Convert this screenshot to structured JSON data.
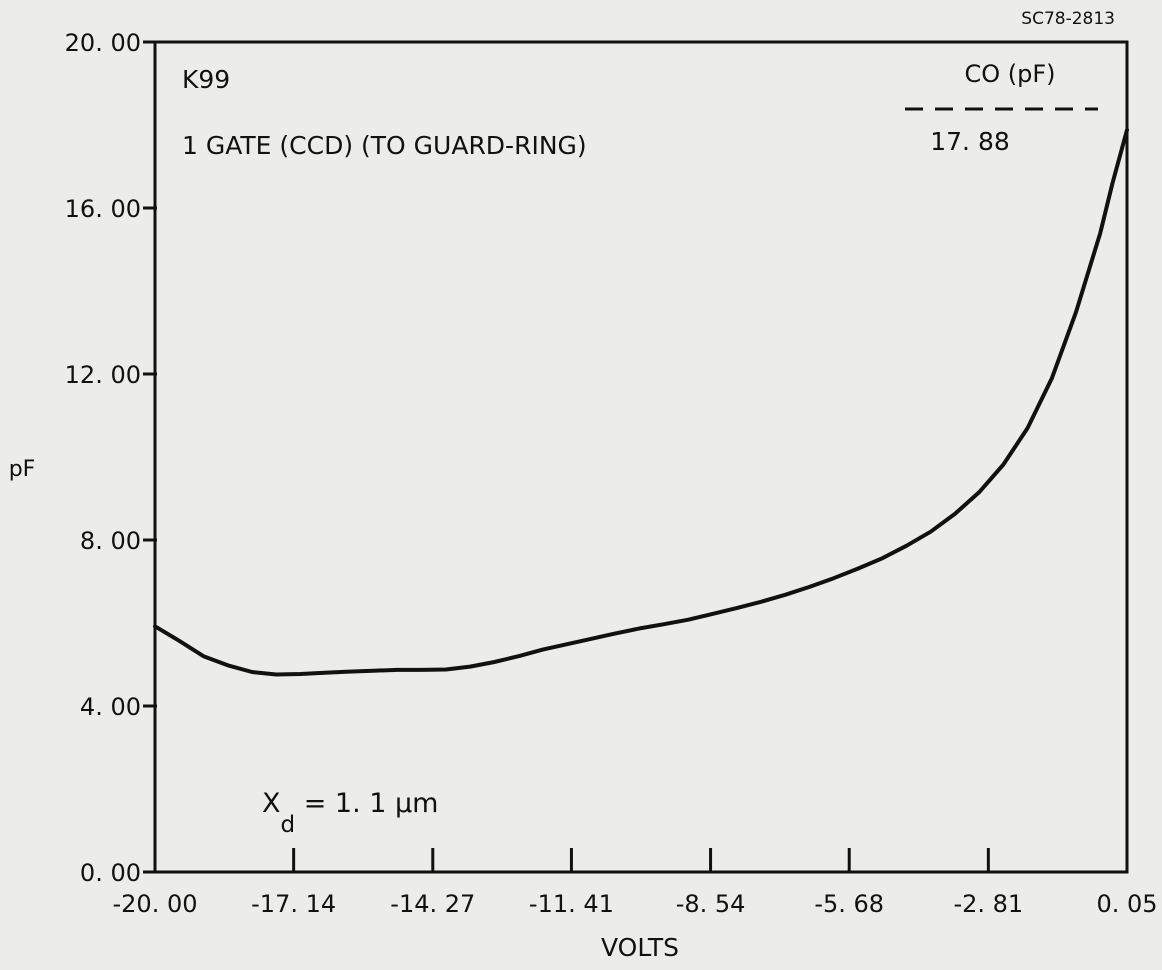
{
  "figure_id": "SC78-2813",
  "chart_data": {
    "type": "line",
    "xlabel": "VOLTS",
    "ylabel": "pF",
    "xlim": [
      -20.0,
      0.05
    ],
    "ylim": [
      0.0,
      20.0
    ],
    "x_ticks": [
      "-20. 00",
      "-17. 14",
      "-14. 27",
      "-11. 41",
      "-8. 54",
      "-5. 68",
      "-2. 81",
      "0. 05"
    ],
    "x_tick_values": [
      -20.0,
      -17.14,
      -14.27,
      -11.41,
      -8.54,
      -5.68,
      -2.81,
      0.05
    ],
    "y_ticks": [
      "0. 00",
      "4. 00",
      "8. 00",
      "12. 00",
      "16. 00",
      "20. 00"
    ],
    "y_tick_values": [
      0,
      4,
      8,
      12,
      16,
      20
    ],
    "annotations": {
      "sample": "K99",
      "description": "1 GATE (CCD) (TO GUARD-RING)",
      "co_header": "CO (pF)",
      "co_value": "17. 88",
      "xd_main": "X",
      "xd_sub": "d",
      "xd_rest": " = 1. 1 µm"
    },
    "grid": false,
    "series": [
      {
        "x": [
          -20.0,
          -19.5,
          -19.0,
          -18.5,
          -18.0,
          -17.5,
          -17.0,
          -16.5,
          -16.0,
          -15.5,
          -15.0,
          -14.5,
          -14.0,
          -13.5,
          -13.0,
          -12.5,
          -12.0,
          -11.5,
          -11.0,
          -10.5,
          -10.0,
          -9.5,
          -9.0,
          -8.5,
          -8.0,
          -7.5,
          -7.0,
          -6.5,
          -6.0,
          -5.5,
          -5.0,
          -4.5,
          -4.0,
          -3.5,
          -3.0,
          -2.5,
          -2.0,
          -1.5,
          -1.0,
          -0.5,
          -0.25,
          0.05
        ],
        "y": [
          5.92,
          5.57,
          5.2,
          4.98,
          4.82,
          4.76,
          4.77,
          4.8,
          4.83,
          4.85,
          4.87,
          4.87,
          4.88,
          4.95,
          5.06,
          5.2,
          5.36,
          5.49,
          5.62,
          5.75,
          5.87,
          5.97,
          6.08,
          6.22,
          6.36,
          6.51,
          6.68,
          6.87,
          7.08,
          7.31,
          7.56,
          7.86,
          8.2,
          8.63,
          9.15,
          9.82,
          10.7,
          11.9,
          13.5,
          15.4,
          16.6,
          17.88
        ]
      }
    ]
  }
}
